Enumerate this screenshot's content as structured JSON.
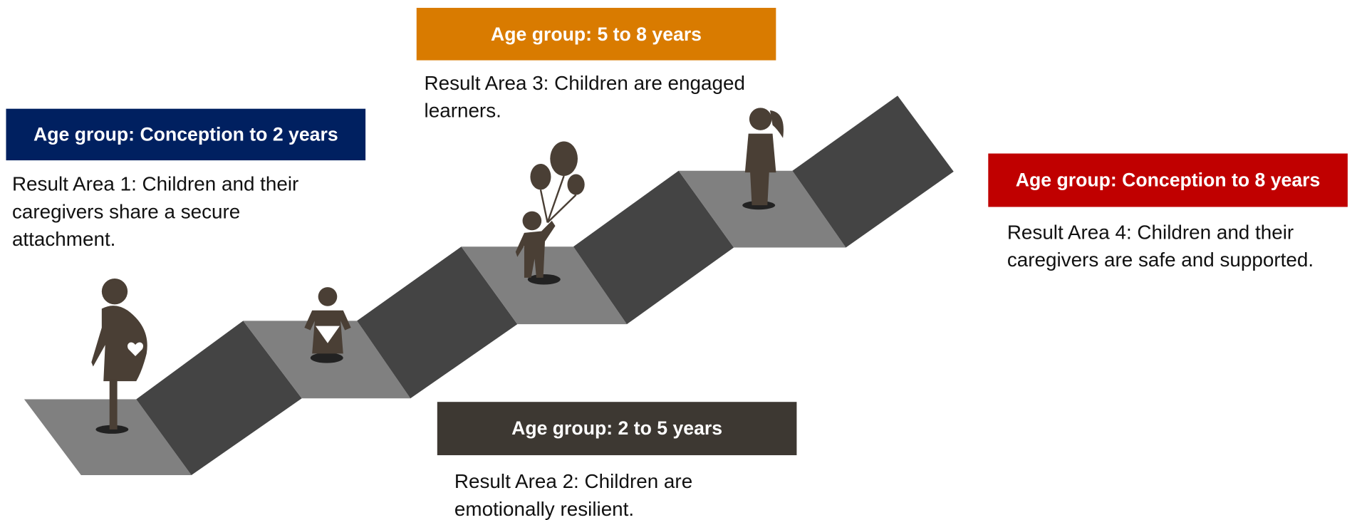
{
  "groups": [
    {
      "age_group": "Age group: Conception to 2 years",
      "result": "Result Area 1: Children and their caregivers share a secure attachment."
    },
    {
      "age_group": "Age group: 2 to 5 years",
      "result": "Result Area 2: Children are emotionally resilient."
    },
    {
      "age_group": "Age group: 5 to 8 years",
      "result": "Result Area 3: Children are engaged learners."
    },
    {
      "age_group": "Age group: Conception to 8 years",
      "result": "Result Area 4: Children and their caregivers are safe and supported."
    }
  ]
}
